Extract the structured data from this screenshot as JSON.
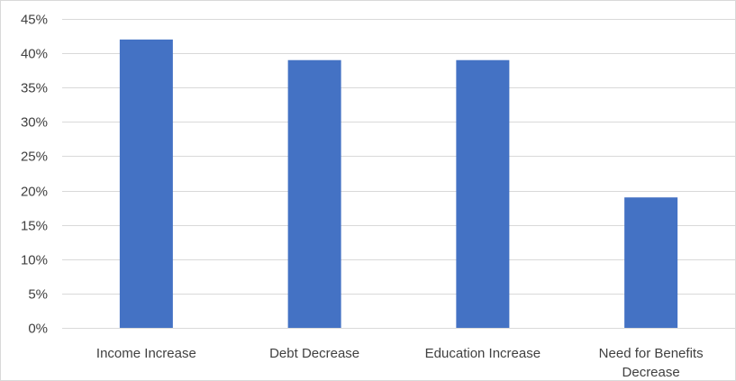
{
  "chart_data": {
    "type": "bar",
    "title": "",
    "xlabel": "",
    "ylabel": "",
    "categories": [
      "Income Increase",
      "Debt Decrease",
      "Education Increase",
      "Need for Benefits Decrease"
    ],
    "category_lines": [
      [
        "Income Increase"
      ],
      [
        "Debt Decrease"
      ],
      [
        "Education Increase"
      ],
      [
        "Need for Benefits",
        "Decrease"
      ]
    ],
    "values": [
      0.42,
      0.39,
      0.39,
      0.19
    ],
    "ylim": [
      0,
      0.45
    ],
    "y_ticks": [
      0,
      0.05,
      0.1,
      0.15,
      0.2,
      0.25,
      0.3,
      0.35,
      0.4,
      0.45
    ],
    "y_tick_labels": [
      "0%",
      "5%",
      "10%",
      "15%",
      "20%",
      "25%",
      "30%",
      "35%",
      "40%",
      "45%"
    ],
    "grid": true,
    "legend": "none",
    "colors": {
      "bar": "#4472c4",
      "grid": "#d9d9d9",
      "axis": "#d9d9d9",
      "text": "#404040"
    }
  }
}
